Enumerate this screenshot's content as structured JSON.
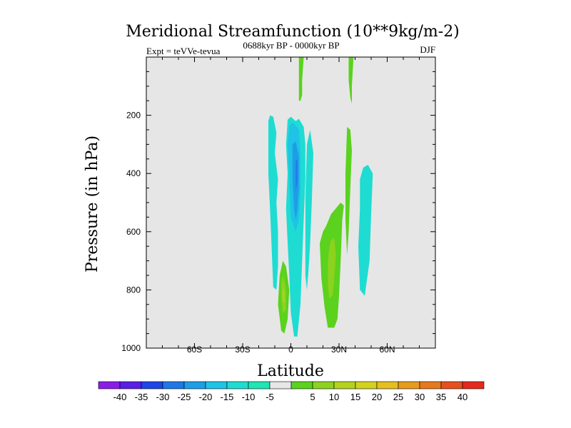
{
  "chart_data": {
    "type": "contour",
    "title": "Meridional Streamfunction (10**9kg/m-2)",
    "left_label": "Expt = teVVe-tevua",
    "center_label": "0688kyr BP - 0000kyr BP",
    "right_label": "DJF",
    "xlabel": "Latitude",
    "ylabel": "Pressure (in hPa)",
    "xlim": [
      -90,
      90
    ],
    "ylim": [
      1000,
      0
    ],
    "x_ticks": [
      {
        "value": -60,
        "label": "60S"
      },
      {
        "value": -30,
        "label": "30S"
      },
      {
        "value": 0,
        "label": "0"
      },
      {
        "value": 30,
        "label": "30N"
      },
      {
        "value": 60,
        "label": "60N"
      }
    ],
    "y_ticks": [
      {
        "value": 200,
        "label": "200"
      },
      {
        "value": 400,
        "label": "400"
      },
      {
        "value": 600,
        "label": "600"
      },
      {
        "value": 800,
        "label": "800"
      },
      {
        "value": 1000,
        "label": "1000"
      }
    ],
    "background_color": "#e6e6e6",
    "colorbar": {
      "colors": [
        "#8a1ee6",
        "#5a1ee6",
        "#1e46e6",
        "#1e78e6",
        "#1e9ee6",
        "#1ec3e6",
        "#1edcd2",
        "#1ee6b4",
        "#e6e6e6",
        "#5ad21e",
        "#8cd21e",
        "#b4d21e",
        "#d2d21e",
        "#e6be1e",
        "#e69b1e",
        "#e6781e",
        "#e6501e",
        "#e6281e"
      ],
      "labels": [
        "-40",
        "-35",
        "-30",
        "-25",
        "-20",
        "-15",
        "-10",
        "-5",
        "5",
        "10",
        "15",
        "20",
        "25",
        "30",
        "35",
        "40"
      ]
    },
    "regions": [
      {
        "level": -10,
        "color": "#1edcd2",
        "polygon": [
          [
            -13,
            200
          ],
          [
            -11,
            205
          ],
          [
            -9,
            260
          ],
          [
            -10,
            330
          ],
          [
            -8,
            420
          ],
          [
            -9,
            500
          ],
          [
            -8,
            600
          ],
          [
            -8,
            720
          ],
          [
            -9,
            800
          ],
          [
            -11,
            790
          ],
          [
            -12,
            650
          ],
          [
            -13,
            520
          ],
          [
            -14,
            400
          ],
          [
            -14,
            300
          ],
          [
            -14,
            220
          ]
        ]
      },
      {
        "level": -10,
        "color": "#1edcd2",
        "polygon": [
          [
            -2,
            215
          ],
          [
            0,
            205
          ],
          [
            3,
            220
          ],
          [
            5,
            212
          ],
          [
            8,
            240
          ],
          [
            9,
            300
          ],
          [
            9,
            420
          ],
          [
            8,
            560
          ],
          [
            7,
            700
          ],
          [
            6,
            850
          ],
          [
            4,
            960
          ],
          [
            2,
            960
          ],
          [
            0,
            880
          ],
          [
            -1,
            750
          ],
          [
            -2,
            640
          ],
          [
            -3,
            520
          ],
          [
            -2,
            400
          ],
          [
            -3,
            300
          ]
        ]
      },
      {
        "level": -10,
        "color": "#1edcd2",
        "polygon": [
          [
            10,
            300
          ],
          [
            12,
            250
          ],
          [
            14,
            330
          ],
          [
            13,
            500
          ],
          [
            12,
            640
          ],
          [
            11,
            730
          ],
          [
            10,
            800
          ],
          [
            9,
            750
          ],
          [
            9,
            620
          ],
          [
            9,
            480
          ]
        ]
      },
      {
        "level": -10,
        "color": "#1edcd2",
        "polygon": [
          [
            45,
            380
          ],
          [
            48,
            370
          ],
          [
            51,
            400
          ],
          [
            50,
            540
          ],
          [
            49,
            700
          ],
          [
            46,
            820
          ],
          [
            43,
            800
          ],
          [
            42,
            650
          ],
          [
            43,
            520
          ],
          [
            43,
            420
          ]
        ]
      },
      {
        "level": -15,
        "color": "#1ec3e6",
        "polygon": [
          [
            -1,
            235
          ],
          [
            1,
            225
          ],
          [
            3,
            235
          ],
          [
            5,
            250
          ],
          [
            6,
            330
          ],
          [
            6,
            460
          ],
          [
            5,
            560
          ],
          [
            3,
            600
          ],
          [
            0,
            550
          ],
          [
            -1,
            420
          ],
          [
            -2,
            300
          ]
        ]
      },
      {
        "level": -20,
        "color": "#1e9ee6",
        "polygon": [
          [
            1,
            300
          ],
          [
            3,
            290
          ],
          [
            5,
            340
          ],
          [
            5,
            450
          ],
          [
            4,
            530
          ],
          [
            3,
            560
          ],
          [
            2,
            520
          ],
          [
            1,
            420
          ]
        ]
      },
      {
        "level": -25,
        "color": "#1e78e6",
        "polygon": [
          [
            3,
            360
          ],
          [
            4,
            350
          ],
          [
            4,
            430
          ],
          [
            3,
            460
          ]
        ]
      },
      {
        "level": 5,
        "color": "#5ad21e",
        "polygon": [
          [
            5,
            0
          ],
          [
            8,
            0
          ],
          [
            7,
            80
          ],
          [
            7,
            130
          ],
          [
            6,
            150
          ],
          [
            5,
            150
          ],
          [
            5,
            80
          ]
        ]
      },
      {
        "level": 5,
        "color": "#5ad21e",
        "polygon": [
          [
            36,
            0
          ],
          [
            39,
            0
          ],
          [
            38,
            100
          ],
          [
            38,
            160
          ],
          [
            37,
            140
          ],
          [
            36,
            80
          ]
        ]
      },
      {
        "level": 5,
        "color": "#5ad21e",
        "polygon": [
          [
            -5,
            700
          ],
          [
            -3,
            720
          ],
          [
            -1,
            800
          ],
          [
            -2,
            900
          ],
          [
            -4,
            950
          ],
          [
            -6,
            940
          ],
          [
            -8,
            850
          ],
          [
            -7,
            750
          ]
        ]
      },
      {
        "level": 5,
        "color": "#5ad21e",
        "polygon": [
          [
            25,
            540
          ],
          [
            28,
            520
          ],
          [
            31,
            500
          ],
          [
            33,
            510
          ],
          [
            32,
            560
          ],
          [
            31,
            700
          ],
          [
            30,
            820
          ],
          [
            29,
            900
          ],
          [
            27,
            930
          ],
          [
            23,
            930
          ],
          [
            21,
            860
          ],
          [
            19,
            760
          ],
          [
            18,
            640
          ],
          [
            20,
            600
          ],
          [
            22,
            580
          ]
        ]
      },
      {
        "level": 5,
        "color": "#5ad21e",
        "polygon": [
          [
            35,
            240
          ],
          [
            37,
            250
          ],
          [
            38,
            320
          ],
          [
            37,
            450
          ],
          [
            36,
            600
          ],
          [
            35,
            680
          ],
          [
            34,
            560
          ],
          [
            34,
            400
          ]
        ]
      },
      {
        "level": 10,
        "color": "#8cd21e",
        "polygon": [
          [
            -5,
            750
          ],
          [
            -4,
            770
          ],
          [
            -3,
            800
          ],
          [
            -3,
            870
          ],
          [
            -5,
            880
          ],
          [
            -6,
            820
          ],
          [
            -6,
            780
          ]
        ]
      },
      {
        "level": 10,
        "color": "#8cd21e",
        "polygon": [
          [
            25,
            630
          ],
          [
            27,
            620
          ],
          [
            28,
            680
          ],
          [
            27,
            760
          ],
          [
            26,
            820
          ],
          [
            24,
            830
          ],
          [
            23,
            790
          ],
          [
            23,
            700
          ],
          [
            24,
            650
          ]
        ]
      },
      {
        "level": 15,
        "color": "#b4d21e",
        "polygon": [
          [
            -5,
            790
          ],
          [
            -4,
            810
          ],
          [
            -4,
            840
          ],
          [
            -5,
            845
          ],
          [
            -5,
            810
          ]
        ]
      }
    ]
  }
}
